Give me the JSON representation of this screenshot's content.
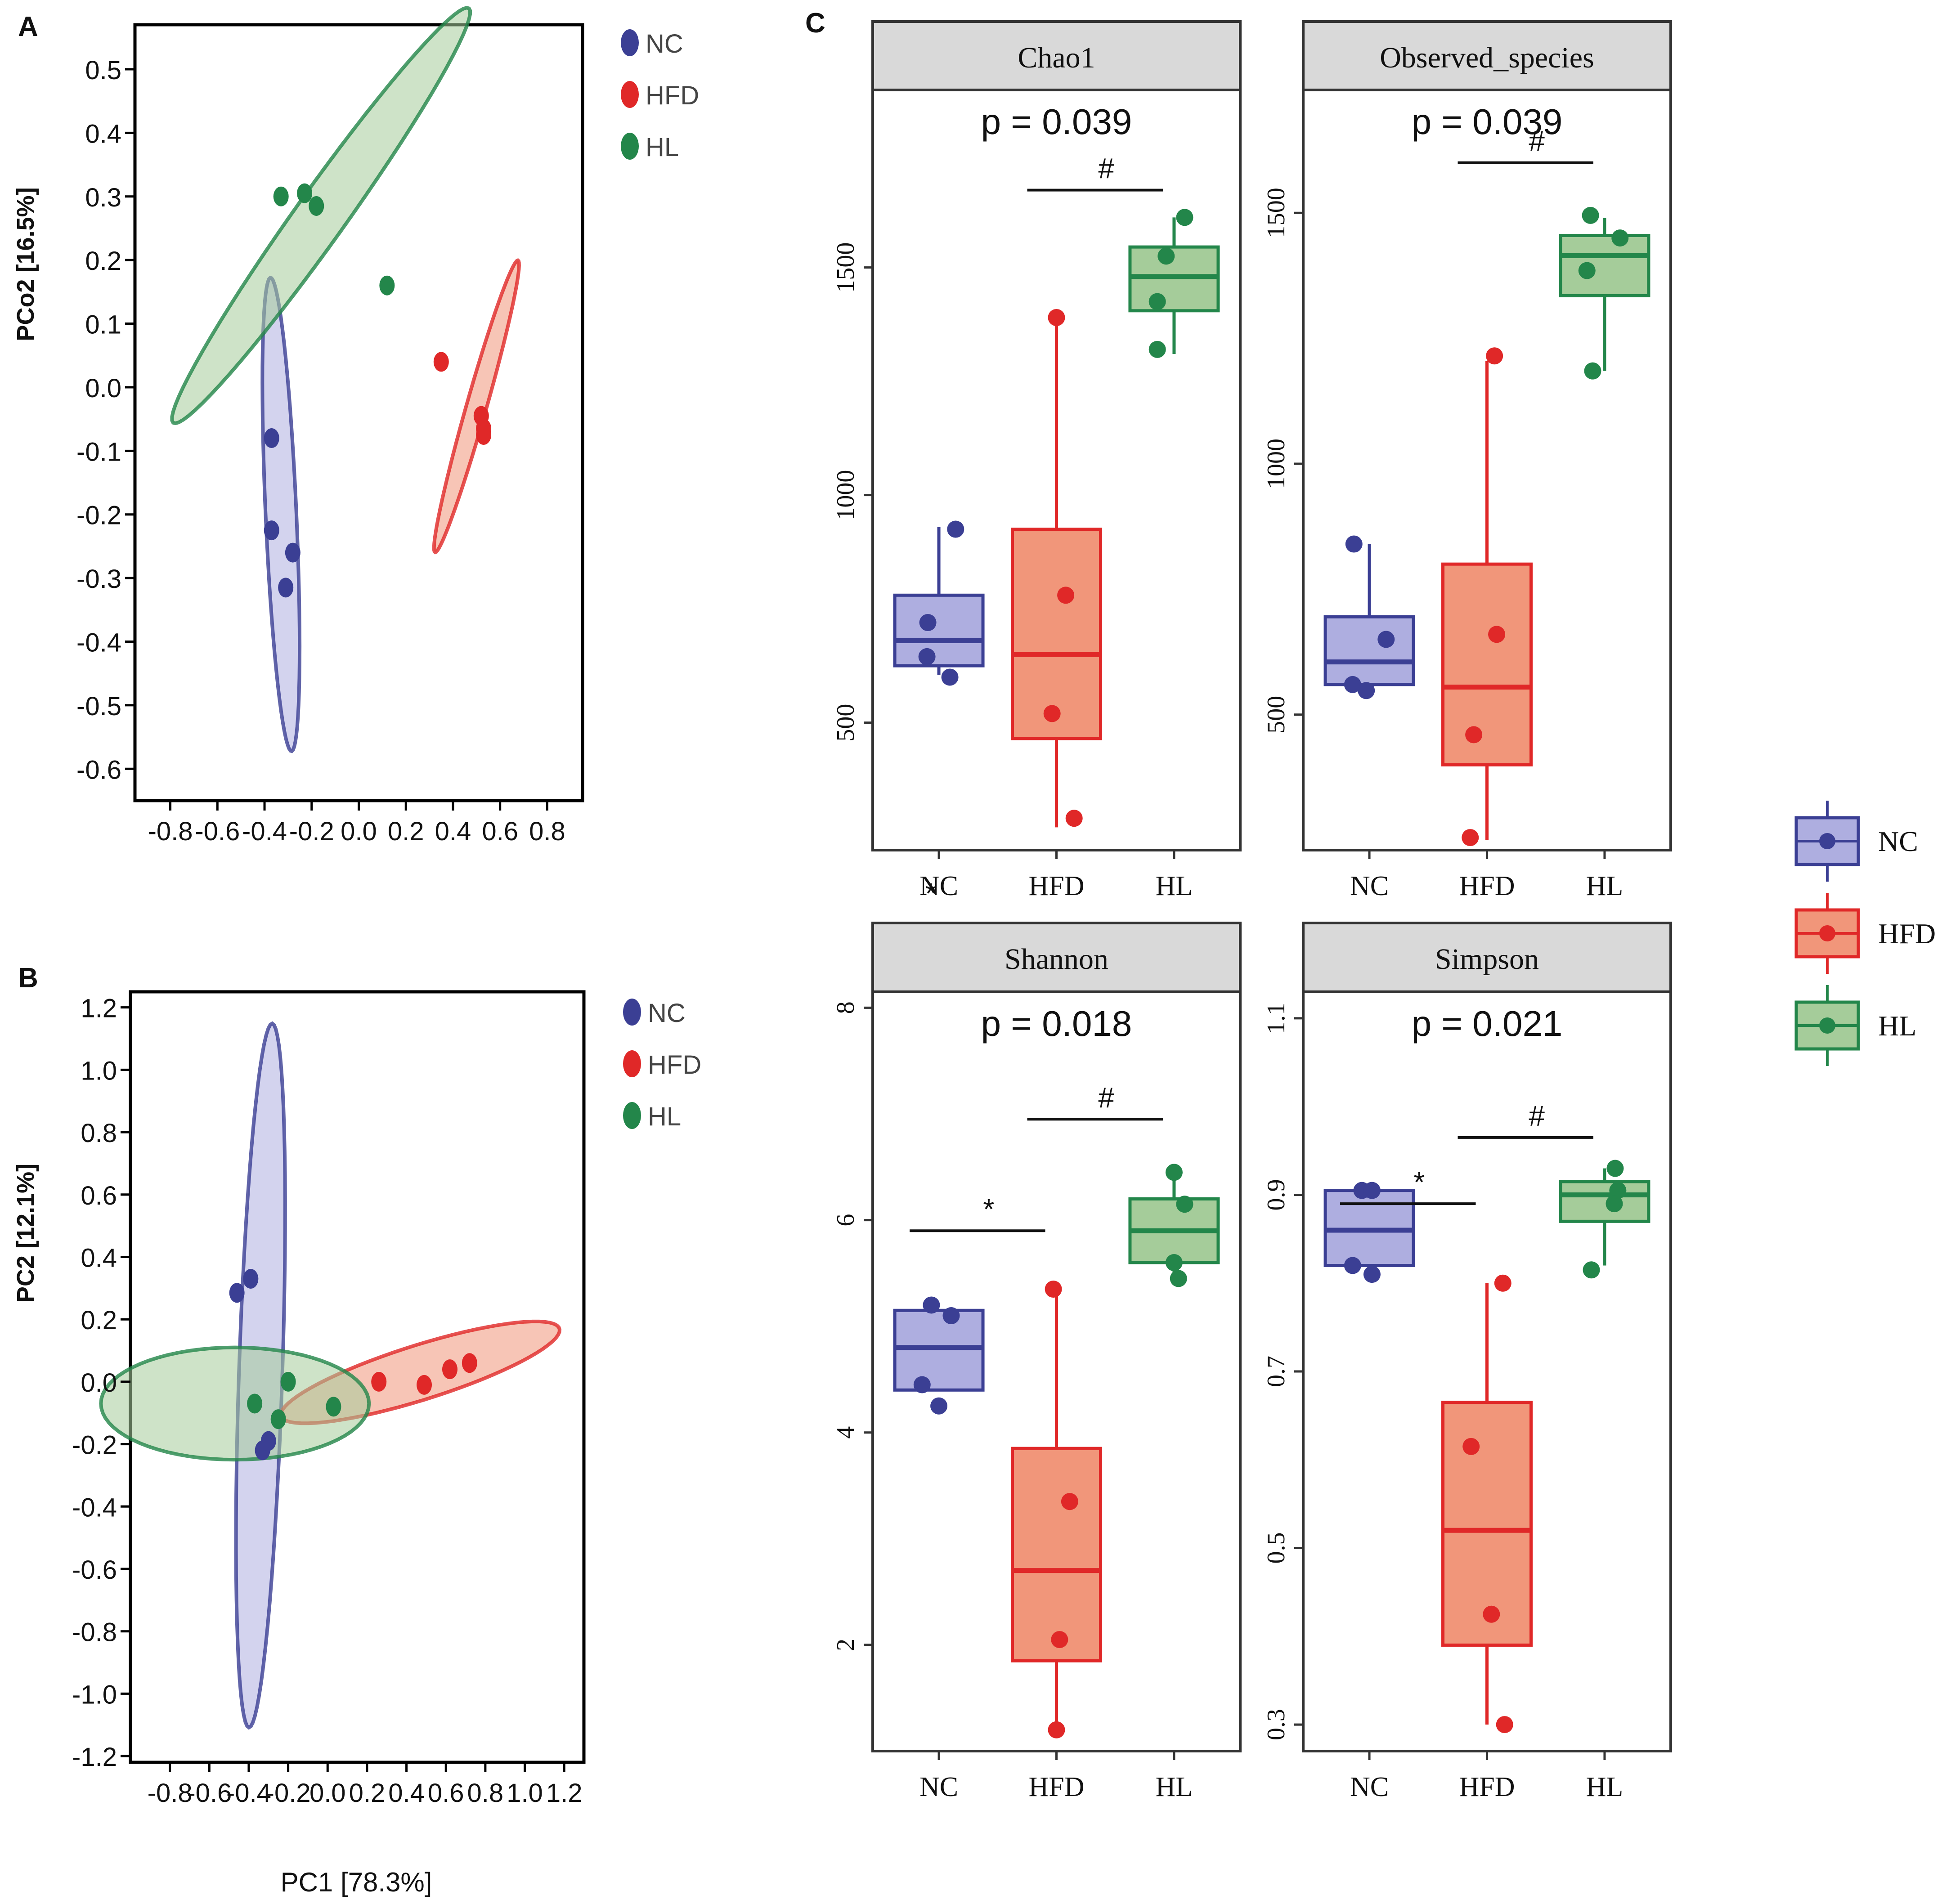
{
  "colors": {
    "NC": "#3b3f94",
    "NC_fill": "#aeaee0",
    "HFD": "#e02828",
    "HFD_fill": "#f1967a",
    "HL": "#23864a",
    "HL_fill": "#a5cc9a",
    "strip": "#d9d9d9"
  },
  "chart_data": [
    {
      "id": "A",
      "type": "scatter",
      "panel_label": "A",
      "xlabel": "",
      "ylabel": "PCo2 [16.5%]",
      "xlim": [
        -0.95,
        0.95
      ],
      "ylim": [
        -0.65,
        0.57
      ],
      "xticks": [
        -0.8,
        -0.6,
        -0.4,
        -0.2,
        0.0,
        0.2,
        0.4,
        0.6,
        0.8
      ],
      "xtick_labels": [
        "-0.8",
        "-0.6",
        "-0.4",
        "-0.2",
        "0.0",
        "0.2",
        "0.4",
        "0.6",
        "0.8"
      ],
      "yticks": [
        0.5,
        0.4,
        0.3,
        0.2,
        0.1,
        0.0,
        -0.1,
        -0.2,
        -0.3,
        -0.4,
        -0.5,
        -0.6
      ],
      "ytick_labels": [
        "0.5",
        "0.4",
        "0.3",
        "0.2",
        "0.1",
        "0.0",
        "-0.1",
        "-0.2",
        "-0.3",
        "-0.4",
        "-0.5",
        "-0.6"
      ],
      "legend": [
        "NC",
        "HFD",
        "HL"
      ],
      "series": [
        {
          "name": "NC",
          "points": [
            [
              -0.37,
              -0.08
            ],
            [
              -0.37,
              -0.225
            ],
            [
              -0.28,
              -0.26
            ],
            [
              -0.31,
              -0.315
            ]
          ],
          "ellipse": {
            "center": [
              -0.33,
              -0.2
            ],
            "semi_major": 0.375,
            "semi_minor": 0.065,
            "angle_deg": 97
          }
        },
        {
          "name": "HFD",
          "points": [
            [
              0.35,
              0.04
            ],
            [
              0.52,
              -0.045
            ],
            [
              0.53,
              -0.065
            ],
            [
              0.53,
              -0.075
            ]
          ],
          "ellipse": {
            "center": [
              0.5,
              -0.03
            ],
            "semi_major": 0.29,
            "semi_minor": 0.035,
            "angle_deg": 52
          }
        },
        {
          "name": "HL",
          "points": [
            [
              -0.33,
              0.3
            ],
            [
              -0.23,
              0.305
            ],
            [
              -0.18,
              0.285
            ],
            [
              0.12,
              0.16
            ]
          ],
          "ellipse": {
            "center": [
              -0.16,
              0.27
            ],
            "semi_major": 0.71,
            "semi_minor": 0.06,
            "angle_deg": 27
          }
        }
      ]
    },
    {
      "id": "B",
      "type": "scatter",
      "panel_label": "B",
      "xlabel": "PC1 [78.3%]",
      "ylabel": "PC2 [12.1%]",
      "xlim": [
        -1.0,
        1.3
      ],
      "ylim": [
        -1.22,
        1.25
      ],
      "xticks": [
        -0.8,
        -0.6,
        -0.4,
        -0.2,
        0.0,
        0.2,
        0.4,
        0.6,
        0.8,
        1.0,
        1.2
      ],
      "xtick_labels": [
        "-0.8",
        "-0.6",
        "-0.4",
        "-0.2",
        "0.0",
        "0.2",
        "0.4",
        "0.6",
        "0.8",
        "1.0",
        "1.2"
      ],
      "yticks": [
        1.2,
        1.0,
        0.8,
        0.6,
        0.4,
        0.2,
        0.0,
        -0.2,
        -0.4,
        -0.6,
        -0.8,
        -1.0,
        -1.2
      ],
      "ytick_labels": [
        "1.2",
        "1.0",
        "0.8",
        "0.6",
        "0.4",
        "0.2",
        "0.0",
        "-0.2",
        "-0.4",
        "-0.6",
        "-0.8",
        "-1.0",
        "-1.2"
      ],
      "legend": [
        "NC",
        "HFD",
        "HL"
      ],
      "series": [
        {
          "name": "NC",
          "points": [
            [
              -0.46,
              0.285
            ],
            [
              -0.39,
              0.33
            ],
            [
              -0.33,
              -0.22
            ],
            [
              -0.3,
              -0.19
            ]
          ],
          "ellipse": {
            "center": [
              -0.34,
              0.02
            ],
            "semi_major": 1.13,
            "semi_minor": 0.11,
            "angle_deg": 87
          }
        },
        {
          "name": "HFD",
          "points": [
            [
              0.26,
              0.0
            ],
            [
              0.49,
              -0.01
            ],
            [
              0.62,
              0.04
            ],
            [
              0.72,
              0.06
            ]
          ],
          "ellipse": {
            "center": [
              0.47,
              0.03
            ],
            "semi_major": 0.72,
            "semi_minor": 0.09,
            "angle_deg": 11
          }
        },
        {
          "name": "HL",
          "points": [
            [
              -0.37,
              -0.07
            ],
            [
              -0.25,
              -0.12
            ],
            [
              -0.2,
              0.0
            ],
            [
              0.03,
              -0.08
            ]
          ],
          "ellipse": {
            "center": [
              -0.47,
              -0.07
            ],
            "semi_major": 0.68,
            "semi_minor": 0.18,
            "angle_deg": 0
          }
        }
      ]
    },
    {
      "id": "C-Chao1",
      "type": "box",
      "panel_label": "C",
      "title": "Chao1",
      "pvalue_text": "p = 0.039",
      "categories": [
        "NC",
        "HFD",
        "HL"
      ],
      "xtick_labels": [
        "NC",
        "HFD",
        "HL"
      ],
      "ylim": [
        220,
        1890
      ],
      "yticks": [
        500,
        1000,
        1500
      ],
      "ytick_labels": [
        "500",
        "1000",
        "1500"
      ],
      "boxes": [
        {
          "name": "NC",
          "q1": 625,
          "median": 680,
          "q3": 780,
          "whisker_low": 605,
          "whisker_high": 930
        },
        {
          "name": "HFD",
          "q1": 465,
          "median": 650,
          "q3": 925,
          "whisker_low": 270,
          "whisker_high": 1390
        },
        {
          "name": "HL",
          "q1": 1405,
          "median": 1480,
          "q3": 1545,
          "whisker_low": 1310,
          "whisker_high": 1610
        }
      ],
      "points": [
        {
          "name": "NC",
          "values": [
            925,
            720,
            645,
            600
          ],
          "offsets": [
            0.38,
            -0.25,
            -0.27,
            0.25
          ]
        },
        {
          "name": "HFD",
          "values": [
            1390,
            780,
            520,
            290
          ],
          "offsets": [
            0.0,
            0.21,
            -0.1,
            0.4
          ]
        },
        {
          "name": "HL",
          "values": [
            1610,
            1525,
            1425,
            1320
          ],
          "offsets": [
            0.24,
            -0.18,
            -0.38,
            -0.38
          ]
        }
      ],
      "annotations": [
        {
          "from": "HFD",
          "to": "HL",
          "label": "#",
          "level": 1670
        }
      ],
      "extra_text": "*",
      "extra_text_at": {
        "category": "NC",
        "offset": -0.18
      }
    },
    {
      "id": "C-Observed_species",
      "type": "box",
      "title": "Observed_species",
      "pvalue_text": "p = 0.039",
      "categories": [
        "NC",
        "HFD",
        "HL"
      ],
      "xtick_labels": [
        "NC",
        "HFD",
        "HL"
      ],
      "ylim": [
        230,
        1745
      ],
      "yticks": [
        500,
        1000,
        1500
      ],
      "ytick_labels": [
        "500",
        "1000",
        "1500"
      ],
      "boxes": [
        {
          "name": "NC",
          "q1": 560,
          "median": 605,
          "q3": 695,
          "whisker_low": 545,
          "whisker_high": 840
        },
        {
          "name": "HFD",
          "q1": 400,
          "median": 555,
          "q3": 800,
          "whisker_low": 250,
          "whisker_high": 1205
        },
        {
          "name": "HL",
          "q1": 1335,
          "median": 1415,
          "q3": 1455,
          "whisker_low": 1185,
          "whisker_high": 1490
        }
      ],
      "points": [
        {
          "name": "NC",
          "values": [
            840,
            650,
            560,
            548
          ],
          "offsets": [
            -0.35,
            0.38,
            -0.38,
            -0.07
          ]
        },
        {
          "name": "HFD",
          "values": [
            1215,
            660,
            460,
            255
          ],
          "offsets": [
            0.17,
            0.22,
            -0.3,
            -0.38
          ]
        },
        {
          "name": "HL",
          "values": [
            1495,
            1450,
            1385,
            1185
          ],
          "offsets": [
            -0.32,
            0.35,
            -0.4,
            -0.27
          ]
        }
      ],
      "annotations": [
        {
          "from": "HFD",
          "to": "HL",
          "label": "#",
          "level": 1600
        }
      ]
    },
    {
      "id": "C-Shannon",
      "type": "box",
      "title": "Shannon",
      "pvalue_text": "p = 0.018",
      "categories": [
        "NC",
        "HFD",
        "HL"
      ],
      "xtick_labels": [
        "NC",
        "HFD",
        "HL"
      ],
      "ylim": [
        1.0,
        8.15
      ],
      "yticks": [
        2,
        4,
        6,
        8
      ],
      "ytick_labels": [
        "2",
        "4",
        "6",
        "8"
      ],
      "boxes": [
        {
          "name": "NC",
          "q1": 4.4,
          "median": 4.8,
          "q3": 5.15,
          "whisker_low": 4.4,
          "whisker_high": 5.15
        },
        {
          "name": "HFD",
          "q1": 1.85,
          "median": 2.7,
          "q3": 3.85,
          "whisker_low": 1.2,
          "whisker_high": 5.35
        },
        {
          "name": "HL",
          "q1": 5.6,
          "median": 5.9,
          "q3": 6.2,
          "whisker_low": 5.45,
          "whisker_high": 6.45
        }
      ],
      "points": [
        {
          "name": "NC",
          "values": [
            5.2,
            5.1,
            4.45,
            4.25
          ],
          "offsets": [
            -0.17,
            0.28,
            -0.38,
            0.0
          ]
        },
        {
          "name": "HFD",
          "values": [
            5.35,
            3.35,
            2.05,
            1.2
          ],
          "offsets": [
            -0.07,
            0.3,
            0.07,
            0.0
          ]
        },
        {
          "name": "HL",
          "values": [
            6.45,
            6.15,
            5.6,
            5.45
          ],
          "offsets": [
            0.0,
            0.24,
            0.0,
            0.1
          ]
        }
      ],
      "annotations": [
        {
          "from": "NC",
          "to": "HFD",
          "label": "*",
          "level": 5.9
        },
        {
          "from": "HFD",
          "to": "HL",
          "label": "#",
          "level": 6.95
        }
      ]
    },
    {
      "id": "C-Simpson",
      "type": "box",
      "title": "Simpson",
      "pvalue_text": "p = 0.021",
      "categories": [
        "NC",
        "HFD",
        "HL"
      ],
      "xtick_labels": [
        "NC",
        "HFD",
        "HL"
      ],
      "ylim": [
        0.27,
        1.13
      ],
      "yticks": [
        0.3,
        0.5,
        0.7,
        0.9,
        1.1
      ],
      "ytick_labels": [
        "0.3",
        "0.5",
        "0.7",
        "0.9",
        "1.1"
      ],
      "boxes": [
        {
          "name": "NC",
          "q1": 0.82,
          "median": 0.86,
          "q3": 0.905,
          "whisker_low": 0.82,
          "whisker_high": 0.905
        },
        {
          "name": "HFD",
          "q1": 0.39,
          "median": 0.52,
          "q3": 0.665,
          "whisker_low": 0.3,
          "whisker_high": 0.8
        },
        {
          "name": "HL",
          "q1": 0.87,
          "median": 0.9,
          "q3": 0.915,
          "whisker_low": 0.82,
          "whisker_high": 0.93
        }
      ],
      "points": [
        {
          "name": "NC",
          "values": [
            0.905,
            0.905,
            0.82,
            0.81
          ],
          "offsets": [
            -0.17,
            0.06,
            -0.38,
            0.06
          ]
        },
        {
          "name": "HFD",
          "values": [
            0.8,
            0.615,
            0.425,
            0.3
          ],
          "offsets": [
            0.36,
            -0.36,
            0.1,
            0.4
          ]
        },
        {
          "name": "HL",
          "values": [
            0.93,
            0.905,
            0.89,
            0.815
          ],
          "offsets": [
            0.24,
            0.3,
            0.22,
            -0.3
          ]
        }
      ],
      "annotations": [
        {
          "from": "NC",
          "to": "HFD",
          "label": "*",
          "level": 0.89
        },
        {
          "from": "HFD",
          "to": "HL",
          "label": "#",
          "level": 0.965
        }
      ]
    }
  ],
  "legend_C": [
    "NC",
    "HFD",
    "HL"
  ]
}
